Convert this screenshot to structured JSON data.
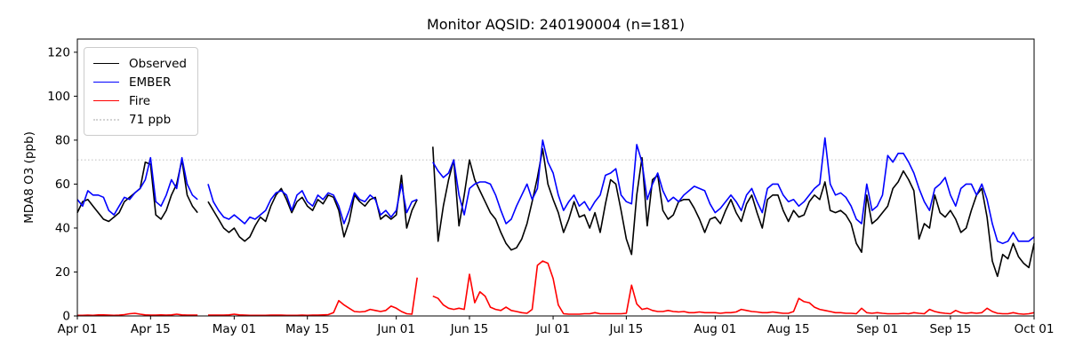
{
  "figure": {
    "title": "Monitor AQSID: 240190004 (n=181)",
    "ylabel": "MDA8 O3 (ppb)"
  },
  "chart_data": {
    "type": "line",
    "title": "Monitor AQSID: 240190004 (n=181)",
    "xlabel": "",
    "ylabel": "MDA8 O3 (ppb)",
    "ylim": [
      0,
      126
    ],
    "yticks": [
      0,
      20,
      40,
      60,
      80,
      100,
      120
    ],
    "x_days_total": 183,
    "xticks": [
      {
        "day": 0,
        "label": "Apr 01"
      },
      {
        "day": 14,
        "label": "Apr 15"
      },
      {
        "day": 30,
        "label": "May 01"
      },
      {
        "day": 44,
        "label": "May 15"
      },
      {
        "day": 61,
        "label": "Jun 01"
      },
      {
        "day": 75,
        "label": "Jun 15"
      },
      {
        "day": 91,
        "label": "Jul 01"
      },
      {
        "day": 105,
        "label": "Jul 15"
      },
      {
        "day": 122,
        "label": "Aug 01"
      },
      {
        "day": 136,
        "label": "Aug 15"
      },
      {
        "day": 153,
        "label": "Sep 01"
      },
      {
        "day": 167,
        "label": "Sep 15"
      },
      {
        "day": 183,
        "label": "Oct 01"
      }
    ],
    "threshold": {
      "value": 71,
      "label": "71 ppb",
      "color": "#d3d3d3",
      "dash": "dotted"
    },
    "legend": [
      {
        "label": "Observed",
        "color": "#000000",
        "dash": "solid"
      },
      {
        "label": "EMBER",
        "color": "#0000ff",
        "dash": "solid"
      },
      {
        "label": "Fire",
        "color": "#ff0000",
        "dash": "solid"
      },
      {
        "label": "71 ppb",
        "color": "#d3d3d3",
        "dash": "dotted"
      }
    ],
    "legend_position": "upper left",
    "grid": false,
    "series": [
      {
        "name": "Observed",
        "color": "#000000",
        "values": [
          47,
          52,
          53,
          50,
          47,
          44,
          43,
          45,
          47,
          52,
          54,
          56,
          58,
          70,
          69,
          46,
          44,
          48,
          55,
          60,
          71,
          55,
          50,
          47,
          null,
          52,
          48,
          44,
          40,
          38,
          40,
          36,
          34,
          36,
          41,
          45,
          43,
          50,
          55,
          58,
          53,
          47,
          52,
          54,
          50,
          48,
          53,
          51,
          55,
          54,
          48,
          36,
          43,
          55,
          52,
          50,
          53,
          54,
          44,
          46,
          44,
          46,
          64,
          40,
          48,
          53,
          null,
          null,
          77,
          34,
          50,
          62,
          71,
          41,
          55,
          71,
          62,
          57,
          52,
          47,
          44,
          38,
          33,
          30,
          31,
          35,
          42,
          52,
          63,
          76,
          60,
          53,
          47,
          38,
          44,
          52,
          45,
          46,
          40,
          47,
          38,
          51,
          62,
          60,
          48,
          35,
          28,
          55,
          72,
          41,
          62,
          64,
          48,
          44,
          46,
          52,
          53,
          53,
          49,
          44,
          38,
          44,
          45,
          42,
          48,
          53,
          47,
          43,
          51,
          55,
          47,
          40,
          53,
          55,
          55,
          48,
          43,
          48,
          45,
          46,
          52,
          55,
          53,
          61,
          48,
          47,
          48,
          46,
          42,
          33,
          29,
          55,
          42,
          44,
          47,
          50,
          58,
          61,
          66,
          62,
          57,
          35,
          42,
          40,
          55,
          47,
          45,
          48,
          44,
          38,
          40,
          48,
          55,
          58,
          45,
          25,
          18,
          28,
          26,
          33,
          27,
          24,
          22,
          33
        ]
      },
      {
        "name": "EMBER",
        "color": "#0000ff",
        "values": [
          53,
          50,
          57,
          55,
          55,
          54,
          48,
          46,
          50,
          54,
          53,
          56,
          58,
          62,
          72,
          52,
          50,
          55,
          62,
          58,
          72,
          60,
          55,
          53,
          null,
          60,
          52,
          48,
          45,
          44,
          46,
          44,
          42,
          45,
          44,
          46,
          48,
          53,
          56,
          57,
          55,
          48,
          55,
          57,
          52,
          50,
          55,
          53,
          56,
          55,
          50,
          42,
          48,
          56,
          53,
          52,
          55,
          53,
          46,
          48,
          45,
          48,
          60,
          47,
          52,
          53,
          null,
          null,
          70,
          66,
          63,
          65,
          71,
          55,
          46,
          58,
          60,
          61,
          61,
          60,
          55,
          48,
          42,
          44,
          50,
          55,
          60,
          53,
          58,
          80,
          70,
          65,
          55,
          48,
          52,
          55,
          50,
          52,
          48,
          52,
          55,
          64,
          65,
          67,
          55,
          52,
          51,
          78,
          70,
          53,
          60,
          65,
          57,
          52,
          54,
          52,
          55,
          57,
          59,
          58,
          57,
          51,
          47,
          49,
          52,
          55,
          52,
          48,
          55,
          58,
          52,
          47,
          58,
          60,
          60,
          55,
          52,
          53,
          50,
          52,
          55,
          58,
          60,
          81,
          60,
          55,
          56,
          54,
          50,
          44,
          42,
          60,
          48,
          50,
          55,
          73,
          70,
          74,
          74,
          70,
          65,
          58,
          52,
          48,
          58,
          60,
          63,
          55,
          50,
          58,
          60,
          60,
          55,
          60,
          53,
          42,
          34,
          33,
          34,
          38,
          34,
          34,
          34,
          36
        ]
      },
      {
        "name": "Fire",
        "color": "#ff0000",
        "values": [
          0.3,
          0.3,
          0.4,
          0.3,
          0.5,
          0.5,
          0.4,
          0.3,
          0.4,
          0.6,
          1,
          1.2,
          0.8,
          0.5,
          0.4,
          0.4,
          0.5,
          0.4,
          0.5,
          0.8,
          0.5,
          0.4,
          0.4,
          0.4,
          null,
          0.4,
          0.4,
          0.4,
          0.4,
          0.5,
          0.8,
          0.5,
          0.4,
          0.3,
          0.3,
          0.3,
          0.3,
          0.4,
          0.4,
          0.4,
          0.3,
          0.3,
          0.3,
          0.4,
          0.3,
          0.4,
          0.4,
          0.5,
          0.6,
          1.5,
          7,
          5,
          3.5,
          2,
          1.8,
          2,
          3,
          2.5,
          2,
          2.5,
          4.5,
          3.5,
          2,
          1,
          0.8,
          17.5,
          null,
          null,
          9,
          8,
          5,
          3.5,
          3,
          3.5,
          3,
          19,
          6,
          11,
          9,
          4,
          3,
          2.5,
          4,
          2.5,
          2,
          1.5,
          1.2,
          3,
          23,
          25,
          24,
          17,
          5,
          1,
          0.8,
          0.8,
          0.8,
          1,
          1,
          1.5,
          1,
          1,
          1,
          1,
          1,
          1.2,
          14,
          5.5,
          3,
          3.5,
          2.5,
          2,
          2,
          2.5,
          2,
          1.8,
          2,
          1.5,
          1.5,
          1.8,
          1.5,
          1.5,
          1.5,
          1.2,
          1.5,
          1.5,
          1.8,
          3,
          2.5,
          2,
          1.8,
          1.5,
          1.5,
          1.8,
          1.5,
          1.2,
          1.2,
          2,
          8,
          6.5,
          6,
          4,
          3,
          2.5,
          2,
          1.5,
          1.5,
          1.2,
          1.2,
          1,
          3.5,
          1.5,
          1.2,
          1.5,
          1.2,
          1,
          1,
          1,
          1.2,
          1,
          1.5,
          1.2,
          1,
          3,
          2,
          1.5,
          1.2,
          1,
          2.5,
          1.5,
          1.2,
          1.5,
          1.2,
          1.5,
          3.5,
          2,
          1.2,
          1,
          1,
          1.5,
          1,
          0.8,
          1,
          1.5
        ]
      }
    ]
  }
}
